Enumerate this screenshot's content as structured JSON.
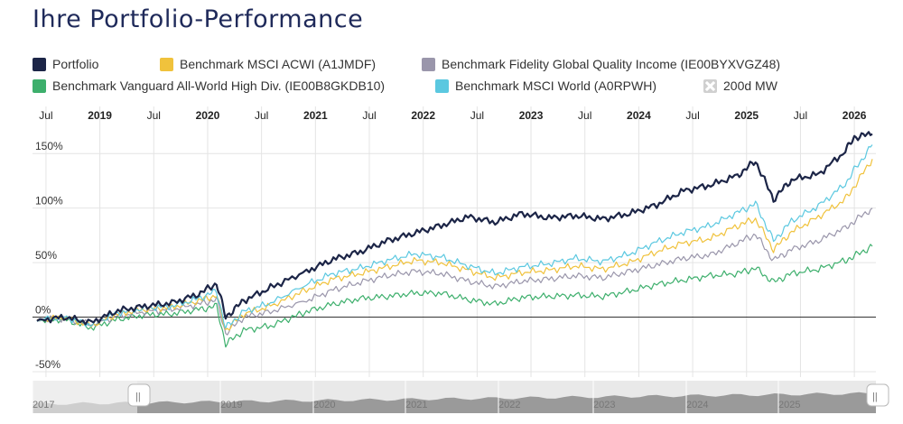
{
  "title": "Ihre Portfolio-Performance",
  "legend": [
    {
      "label": "Portfolio",
      "color": "#1c2547"
    },
    {
      "label": "Benchmark MSCI ACWI (A1JMDF)",
      "color": "#f0c23c"
    },
    {
      "label": "Benchmark Fidelity Global Quality Income (IE00BYXVGZ48)",
      "color": "#9a96ab"
    },
    {
      "label": "Benchmark Vanguard All-World High Div. (IE00B8GKDB10)",
      "color": "#3daf6c"
    },
    {
      "label": "Benchmark MSCI World (A0RPWH)",
      "color": "#5bc8e0"
    },
    {
      "label": "200d MW",
      "color": "#d0d0d0"
    }
  ],
  "chart_data": {
    "type": "line",
    "x_ticks": [
      "Jul",
      "2019",
      "Jul",
      "2020",
      "Jul",
      "2021",
      "Jul",
      "2022",
      "Jul",
      "2023",
      "Jul",
      "2024",
      "Jul",
      "2025",
      "Jul",
      "2026"
    ],
    "y_ticks": [
      "150%",
      "100%",
      "50%",
      "0%",
      "-50%"
    ],
    "y_tick_values": [
      150,
      100,
      50,
      0,
      -50
    ],
    "ylim": [
      -55,
      175
    ],
    "xlim": [
      "2018-06",
      "2026-03"
    ],
    "grid": true,
    "series": [
      {
        "name": "Portfolio",
        "color": "#1c2547",
        "x": [
          "2018-06",
          "2018-09",
          "2018-12",
          "2019-03",
          "2019-06",
          "2019-09",
          "2019-12",
          "2020-02",
          "2020-03",
          "2020-05",
          "2020-08",
          "2020-12",
          "2021-03",
          "2021-06",
          "2021-09",
          "2021-12",
          "2022-03",
          "2022-06",
          "2022-09",
          "2022-12",
          "2023-03",
          "2023-06",
          "2023-09",
          "2023-12",
          "2024-03",
          "2024-06",
          "2024-09",
          "2024-12",
          "2025-02",
          "2025-04",
          "2025-06",
          "2025-09",
          "2025-12",
          "2026-01",
          "2026-03"
        ],
        "values": [
          -3,
          0,
          -5,
          6,
          10,
          13,
          21,
          31,
          0,
          15,
          27,
          42,
          53,
          60,
          70,
          77,
          84,
          92,
          87,
          95,
          91,
          93,
          90,
          95,
          103,
          116,
          121,
          130,
          143,
          108,
          126,
          131,
          152,
          165,
          168
        ]
      },
      {
        "name": "Benchmark MSCI ACWI (A1JMDF)",
        "color": "#f0c23c",
        "x": [
          "2018-06",
          "2018-09",
          "2018-12",
          "2019-03",
          "2019-06",
          "2019-09",
          "2019-12",
          "2020-02",
          "2020-03",
          "2020-05",
          "2020-08",
          "2020-12",
          "2021-03",
          "2021-06",
          "2021-09",
          "2021-12",
          "2022-03",
          "2022-06",
          "2022-09",
          "2022-12",
          "2023-03",
          "2023-06",
          "2023-09",
          "2023-12",
          "2024-03",
          "2024-06",
          "2024-09",
          "2024-12",
          "2025-02",
          "2025-04",
          "2025-06",
          "2025-09",
          "2025-12",
          "2026-01",
          "2026-03"
        ],
        "values": [
          -3,
          0,
          -8,
          3,
          7,
          9,
          15,
          20,
          -12,
          3,
          10,
          25,
          35,
          40,
          46,
          52,
          50,
          43,
          36,
          41,
          43,
          47,
          44,
          50,
          60,
          68,
          72,
          84,
          90,
          62,
          78,
          92,
          108,
          120,
          145
        ]
      },
      {
        "name": "Benchmark Fidelity Global Quality Income (IE00BYXVGZ48)",
        "color": "#9a96ab",
        "x": [
          "2018-06",
          "2018-09",
          "2018-12",
          "2019-03",
          "2019-06",
          "2019-09",
          "2019-12",
          "2020-02",
          "2020-03",
          "2020-05",
          "2020-08",
          "2020-12",
          "2021-03",
          "2021-06",
          "2021-09",
          "2021-12",
          "2022-03",
          "2022-06",
          "2022-09",
          "2022-12",
          "2023-03",
          "2023-06",
          "2023-09",
          "2023-12",
          "2024-03",
          "2024-06",
          "2024-09",
          "2024-12",
          "2025-02",
          "2025-04",
          "2025-06",
          "2025-09",
          "2025-12",
          "2026-01",
          "2026-03"
        ],
        "values": [
          -3,
          -1,
          -7,
          1,
          5,
          7,
          12,
          16,
          -15,
          0,
          5,
          15,
          25,
          32,
          38,
          42,
          40,
          33,
          28,
          33,
          35,
          38,
          36,
          42,
          48,
          54,
          57,
          68,
          76,
          52,
          62,
          70,
          82,
          88,
          100
        ]
      },
      {
        "name": "Benchmark Vanguard All-World High Div. (IE00B8GKDB10)",
        "color": "#3daf6c",
        "x": [
          "2018-06",
          "2018-09",
          "2018-12",
          "2019-03",
          "2019-06",
          "2019-09",
          "2019-12",
          "2020-02",
          "2020-03",
          "2020-05",
          "2020-08",
          "2020-12",
          "2021-03",
          "2021-06",
          "2021-09",
          "2021-12",
          "2022-03",
          "2022-06",
          "2022-09",
          "2022-12",
          "2023-03",
          "2023-06",
          "2023-09",
          "2023-12",
          "2024-03",
          "2024-06",
          "2024-09",
          "2024-12",
          "2025-02",
          "2025-04",
          "2025-06",
          "2025-09",
          "2025-12",
          "2026-01",
          "2026-03"
        ],
        "values": [
          -3,
          -2,
          -10,
          -2,
          2,
          3,
          7,
          10,
          -25,
          -12,
          -8,
          5,
          12,
          17,
          19,
          22,
          22,
          16,
          12,
          18,
          19,
          20,
          19,
          24,
          30,
          34,
          38,
          40,
          45,
          32,
          40,
          44,
          52,
          56,
          65
        ]
      },
      {
        "name": "Benchmark MSCI World (A0RPWH)",
        "color": "#5bc8e0",
        "x": [
          "2018-06",
          "2018-09",
          "2018-12",
          "2019-03",
          "2019-06",
          "2019-09",
          "2019-12",
          "2020-02",
          "2020-03",
          "2020-05",
          "2020-08",
          "2020-12",
          "2021-03",
          "2021-06",
          "2021-09",
          "2021-12",
          "2022-03",
          "2022-06",
          "2022-09",
          "2022-12",
          "2023-03",
          "2023-06",
          "2023-09",
          "2023-12",
          "2024-03",
          "2024-06",
          "2024-09",
          "2024-12",
          "2025-02",
          "2025-04",
          "2025-06",
          "2025-09",
          "2025-12",
          "2026-01",
          "2026-03"
        ],
        "values": [
          -3,
          0,
          -7,
          4,
          8,
          10,
          17,
          24,
          -10,
          5,
          13,
          30,
          40,
          45,
          52,
          58,
          55,
          47,
          40,
          46,
          49,
          54,
          51,
          58,
          69,
          78,
          84,
          96,
          104,
          70,
          88,
          102,
          122,
          135,
          158
        ]
      }
    ]
  },
  "navigator": {
    "labels": [
      "2017",
      "2019",
      "2020",
      "2021",
      "2022",
      "2023",
      "2024",
      "2025"
    ],
    "handle_left_label": "||",
    "handle_right_label": "||"
  }
}
